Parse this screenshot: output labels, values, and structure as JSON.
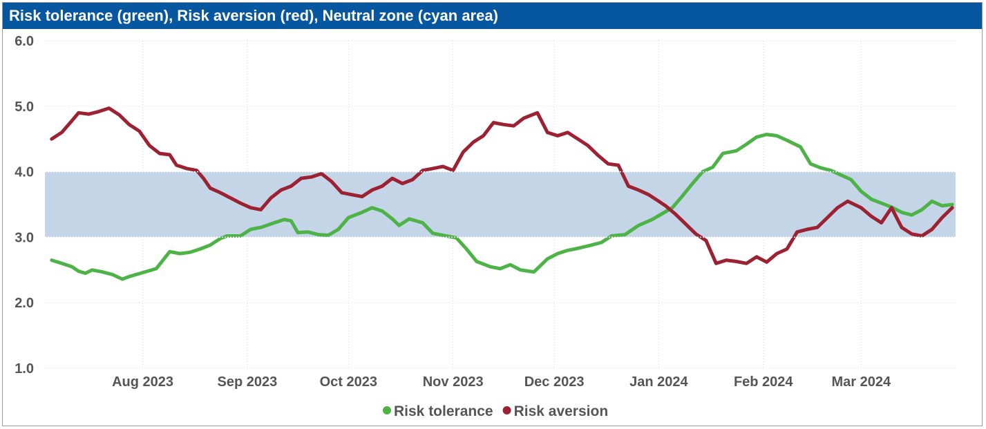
{
  "chart_data": {
    "type": "line",
    "title": "Risk tolerance (green), Risk aversion (red), Neutral zone (cyan area)",
    "ylim": [
      1.0,
      6.0
    ],
    "y_ticks": [
      "1.0",
      "2.0",
      "3.0",
      "4.0",
      "5.0",
      "6.0"
    ],
    "x_range": [
      "2023-07-03",
      "2024-03-29"
    ],
    "x_ticks": [
      {
        "label": "Aug 2023",
        "date": "2023-08-01"
      },
      {
        "label": "Sep 2023",
        "date": "2023-09-01"
      },
      {
        "label": "Oct 2023",
        "date": "2023-10-01"
      },
      {
        "label": "Nov 2023",
        "date": "2023-11-01"
      },
      {
        "label": "Dec 2023",
        "date": "2023-12-01"
      },
      {
        "label": "Jan 2024",
        "date": "2024-01-01"
      },
      {
        "label": "Feb 2024",
        "date": "2024-02-01"
      },
      {
        "label": "Mar 2024",
        "date": "2024-03-01"
      }
    ],
    "grid": true,
    "neutral_zone": {
      "y_min": 3.0,
      "y_max": 4.0,
      "color": "#c3d5e6"
    },
    "legend_position": "bottom-center",
    "series": [
      {
        "name": "Risk tolerance",
        "color": "#4db347",
        "points": [
          [
            "2023-07-05",
            2.65
          ],
          [
            "2023-07-08",
            2.6
          ],
          [
            "2023-07-11",
            2.55
          ],
          [
            "2023-07-13",
            2.48
          ],
          [
            "2023-07-15",
            2.45
          ],
          [
            "2023-07-17",
            2.5
          ],
          [
            "2023-07-20",
            2.47
          ],
          [
            "2023-07-23",
            2.43
          ],
          [
            "2023-07-26",
            2.36
          ],
          [
            "2023-07-28",
            2.4
          ],
          [
            "2023-08-01",
            2.46
          ],
          [
            "2023-08-05",
            2.52
          ],
          [
            "2023-08-07",
            2.65
          ],
          [
            "2023-08-09",
            2.78
          ],
          [
            "2023-08-12",
            2.75
          ],
          [
            "2023-08-15",
            2.77
          ],
          [
            "2023-08-18",
            2.82
          ],
          [
            "2023-08-21",
            2.88
          ],
          [
            "2023-08-24",
            2.98
          ],
          [
            "2023-08-26",
            3.02
          ],
          [
            "2023-08-30",
            3.02
          ],
          [
            "2023-09-02",
            3.12
          ],
          [
            "2023-09-05",
            3.15
          ],
          [
            "2023-09-09",
            3.22
          ],
          [
            "2023-09-12",
            3.27
          ],
          [
            "2023-09-14",
            3.25
          ],
          [
            "2023-09-16",
            3.07
          ],
          [
            "2023-09-19",
            3.08
          ],
          [
            "2023-09-22",
            3.04
          ],
          [
            "2023-09-25",
            3.03
          ],
          [
            "2023-09-28",
            3.12
          ],
          [
            "2023-10-01",
            3.3
          ],
          [
            "2023-10-05",
            3.38
          ],
          [
            "2023-10-08",
            3.45
          ],
          [
            "2023-10-11",
            3.4
          ],
          [
            "2023-10-14",
            3.28
          ],
          [
            "2023-10-16",
            3.18
          ],
          [
            "2023-10-19",
            3.28
          ],
          [
            "2023-10-23",
            3.22
          ],
          [
            "2023-10-26",
            3.06
          ],
          [
            "2023-10-29",
            3.03
          ],
          [
            "2023-11-02",
            2.99
          ],
          [
            "2023-11-05",
            2.82
          ],
          [
            "2023-11-08",
            2.63
          ],
          [
            "2023-11-12",
            2.55
          ],
          [
            "2023-11-15",
            2.52
          ],
          [
            "2023-11-18",
            2.58
          ],
          [
            "2023-11-21",
            2.5
          ],
          [
            "2023-11-25",
            2.47
          ],
          [
            "2023-11-29",
            2.67
          ],
          [
            "2023-12-02",
            2.75
          ],
          [
            "2023-12-05",
            2.8
          ],
          [
            "2023-12-08",
            2.83
          ],
          [
            "2023-12-12",
            2.88
          ],
          [
            "2023-12-15",
            2.92
          ],
          [
            "2023-12-18",
            3.02
          ],
          [
            "2023-12-22",
            3.04
          ],
          [
            "2023-12-26",
            3.18
          ],
          [
            "2023-12-30",
            3.27
          ],
          [
            "2024-01-02",
            3.36
          ],
          [
            "2024-01-05",
            3.45
          ],
          [
            "2024-01-08",
            3.63
          ],
          [
            "2024-01-11",
            3.82
          ],
          [
            "2024-01-14",
            4.0
          ],
          [
            "2024-01-17",
            4.07
          ],
          [
            "2024-01-20",
            4.28
          ],
          [
            "2024-01-24",
            4.32
          ],
          [
            "2024-01-27",
            4.42
          ],
          [
            "2024-01-30",
            4.53
          ],
          [
            "2024-02-02",
            4.57
          ],
          [
            "2024-02-05",
            4.55
          ],
          [
            "2024-02-08",
            4.48
          ],
          [
            "2024-02-12",
            4.38
          ],
          [
            "2024-02-15",
            4.12
          ],
          [
            "2024-02-18",
            4.06
          ],
          [
            "2024-02-21",
            4.02
          ],
          [
            "2024-02-24",
            3.95
          ],
          [
            "2024-02-27",
            3.88
          ],
          [
            "2024-03-01",
            3.7
          ],
          [
            "2024-03-04",
            3.58
          ],
          [
            "2024-03-07",
            3.52
          ],
          [
            "2024-03-10",
            3.46
          ],
          [
            "2024-03-13",
            3.38
          ],
          [
            "2024-03-16",
            3.34
          ],
          [
            "2024-03-19",
            3.42
          ],
          [
            "2024-03-22",
            3.55
          ],
          [
            "2024-03-25",
            3.48
          ],
          [
            "2024-03-28",
            3.5
          ]
        ]
      },
      {
        "name": "Risk aversion",
        "color": "#9c2132",
        "points": [
          [
            "2023-07-05",
            4.5
          ],
          [
            "2023-07-08",
            4.6
          ],
          [
            "2023-07-11",
            4.78
          ],
          [
            "2023-07-13",
            4.9
          ],
          [
            "2023-07-16",
            4.88
          ],
          [
            "2023-07-19",
            4.92
          ],
          [
            "2023-07-22",
            4.97
          ],
          [
            "2023-07-25",
            4.87
          ],
          [
            "2023-07-28",
            4.72
          ],
          [
            "2023-07-31",
            4.62
          ],
          [
            "2023-08-03",
            4.4
          ],
          [
            "2023-08-06",
            4.28
          ],
          [
            "2023-08-09",
            4.26
          ],
          [
            "2023-08-11",
            4.1
          ],
          [
            "2023-08-14",
            4.05
          ],
          [
            "2023-08-17",
            4.02
          ],
          [
            "2023-08-19",
            3.9
          ],
          [
            "2023-08-21",
            3.75
          ],
          [
            "2023-08-24",
            3.68
          ],
          [
            "2023-08-27",
            3.6
          ],
          [
            "2023-08-30",
            3.52
          ],
          [
            "2023-09-02",
            3.45
          ],
          [
            "2023-09-05",
            3.42
          ],
          [
            "2023-09-08",
            3.6
          ],
          [
            "2023-09-11",
            3.72
          ],
          [
            "2023-09-14",
            3.78
          ],
          [
            "2023-09-17",
            3.9
          ],
          [
            "2023-09-20",
            3.92
          ],
          [
            "2023-09-23",
            3.97
          ],
          [
            "2023-09-26",
            3.85
          ],
          [
            "2023-09-29",
            3.68
          ],
          [
            "2023-10-02",
            3.65
          ],
          [
            "2023-10-05",
            3.62
          ],
          [
            "2023-10-08",
            3.72
          ],
          [
            "2023-10-11",
            3.78
          ],
          [
            "2023-10-14",
            3.9
          ],
          [
            "2023-10-17",
            3.82
          ],
          [
            "2023-10-20",
            3.88
          ],
          [
            "2023-10-23",
            4.02
          ],
          [
            "2023-10-26",
            4.05
          ],
          [
            "2023-10-29",
            4.08
          ],
          [
            "2023-11-01",
            4.02
          ],
          [
            "2023-11-04",
            4.3
          ],
          [
            "2023-11-07",
            4.45
          ],
          [
            "2023-11-10",
            4.55
          ],
          [
            "2023-11-13",
            4.75
          ],
          [
            "2023-11-16",
            4.72
          ],
          [
            "2023-11-19",
            4.7
          ],
          [
            "2023-11-22",
            4.82
          ],
          [
            "2023-11-26",
            4.9
          ],
          [
            "2023-11-29",
            4.6
          ],
          [
            "2023-12-02",
            4.55
          ],
          [
            "2023-12-05",
            4.6
          ],
          [
            "2023-12-08",
            4.5
          ],
          [
            "2023-12-11",
            4.4
          ],
          [
            "2023-12-14",
            4.25
          ],
          [
            "2023-12-17",
            4.12
          ],
          [
            "2023-12-20",
            4.1
          ],
          [
            "2023-12-23",
            3.78
          ],
          [
            "2023-12-26",
            3.72
          ],
          [
            "2023-12-29",
            3.65
          ],
          [
            "2024-01-01",
            3.55
          ],
          [
            "2024-01-03",
            3.48
          ],
          [
            "2024-01-06",
            3.35
          ],
          [
            "2024-01-09",
            3.2
          ],
          [
            "2024-01-12",
            3.05
          ],
          [
            "2024-01-15",
            2.95
          ],
          [
            "2024-01-18",
            2.6
          ],
          [
            "2024-01-21",
            2.65
          ],
          [
            "2024-01-24",
            2.63
          ],
          [
            "2024-01-27",
            2.6
          ],
          [
            "2024-01-30",
            2.7
          ],
          [
            "2024-02-02",
            2.62
          ],
          [
            "2024-02-05",
            2.75
          ],
          [
            "2024-02-08",
            2.82
          ],
          [
            "2024-02-11",
            3.08
          ],
          [
            "2024-02-14",
            3.12
          ],
          [
            "2024-02-17",
            3.15
          ],
          [
            "2024-02-20",
            3.3
          ],
          [
            "2024-02-23",
            3.45
          ],
          [
            "2024-02-26",
            3.55
          ],
          [
            "2024-03-01",
            3.45
          ],
          [
            "2024-03-04",
            3.32
          ],
          [
            "2024-03-07",
            3.22
          ],
          [
            "2024-03-10",
            3.45
          ],
          [
            "2024-03-13",
            3.15
          ],
          [
            "2024-03-16",
            3.05
          ],
          [
            "2024-03-19",
            3.02
          ],
          [
            "2024-03-22",
            3.12
          ],
          [
            "2024-03-25",
            3.3
          ],
          [
            "2024-03-28",
            3.45
          ]
        ]
      }
    ]
  }
}
